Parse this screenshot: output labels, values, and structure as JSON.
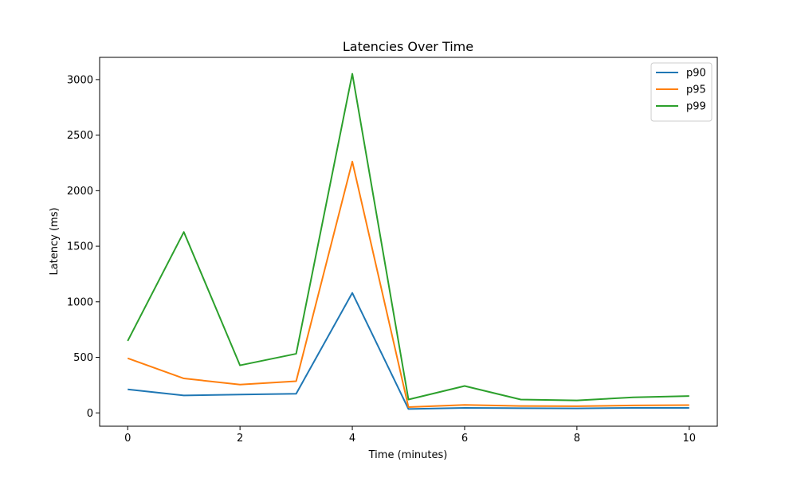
{
  "chart_data": {
    "type": "line",
    "title": "Latencies Over Time",
    "xlabel": "Time (minutes)",
    "ylabel": "Latency (ms)",
    "x": [
      0,
      1,
      2,
      3,
      4,
      5,
      6,
      7,
      8,
      9,
      10
    ],
    "xlim": [
      -0.5,
      10.5
    ],
    "ylim": [
      -120,
      3200
    ],
    "xticks": [
      0,
      2,
      4,
      6,
      8,
      10
    ],
    "yticks": [
      0,
      500,
      1000,
      1500,
      2000,
      2500,
      3000
    ],
    "grid": false,
    "legend_position": "top-right",
    "series": [
      {
        "name": "p90",
        "color": "#1f77b4",
        "values": [
          212,
          157,
          165,
          172,
          1080,
          35,
          45,
          42,
          40,
          45,
          45
        ]
      },
      {
        "name": "p95",
        "color": "#ff7f0e",
        "values": [
          492,
          310,
          255,
          285,
          2262,
          52,
          72,
          62,
          60,
          67,
          70
        ]
      },
      {
        "name": "p99",
        "color": "#2ca02c",
        "values": [
          648,
          1628,
          428,
          532,
          3052,
          120,
          242,
          120,
          112,
          140,
          152
        ]
      }
    ]
  }
}
